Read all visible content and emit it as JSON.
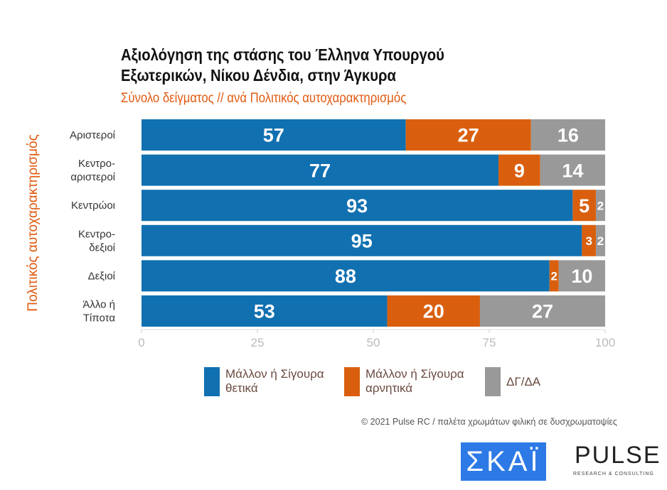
{
  "chart_data": {
    "type": "bar",
    "orientation": "horizontal",
    "stacked": true,
    "title": "Αξιολόγηση της στάσης του Έλληνα Υπουργού Εξωτερικών, Νίκου Δένδια, στην Άγκυρα",
    "title_lines": [
      "Αξιολόγηση της στάσης του Έλληνα Υπουργού",
      "Εξωτερικών, Νίκου Δένδια, στην Άγκυρα"
    ],
    "subtitle": "Σύνολο δείγματος // ανά Πολιτικός αυτοχαρακτηρισμός",
    "ylabel": "Πολιτικός αυτοχαρακτηρισμός",
    "categories": [
      [
        "Αριστεροί"
      ],
      [
        "Κεντρο-",
        "αριστεροί"
      ],
      [
        "Κεντρώοι"
      ],
      [
        "Κεντρο-",
        "δεξιοί"
      ],
      [
        "Δεξιοί"
      ],
      [
        "Άλλο ή",
        "Τίποτα"
      ]
    ],
    "xlim": [
      0,
      100
    ],
    "xticks": [
      "0",
      "25",
      "50",
      "75",
      "100"
    ],
    "grid": false,
    "legend_position": "bottom",
    "series": [
      {
        "name": "Μάλλον ή Σίγουρα θετικά",
        "name_lines": [
          "Μάλλον ή Σίγουρα",
          "θετικά"
        ],
        "color": "#1170b0",
        "values": [
          57,
          77,
          93,
          95,
          88,
          53
        ]
      },
      {
        "name": "Μάλλον ή Σίγουρα αρνητικά",
        "name_lines": [
          "Μάλλον ή Σίγουρα",
          "αρνητικά"
        ],
        "color": "#d95f0e",
        "values": [
          27,
          9,
          5,
          3,
          2,
          20
        ]
      },
      {
        "name": "ΔΓ/ΔΑ",
        "name_lines": [
          "ΔΓ/ΔΑ"
        ],
        "color": "#999999",
        "values": [
          16,
          14,
          2,
          2,
          10,
          27
        ]
      }
    ]
  },
  "footer": {
    "copyright": "© 2021 Pulse RC  /  παλέτα χρωμάτων φιλική σε δυσχρωματοψίες"
  },
  "logos": {
    "skai": "ΣΚΑΪ",
    "pulse": "PULSE",
    "pulse_sub": "RESEARCH & CONSULTING"
  }
}
